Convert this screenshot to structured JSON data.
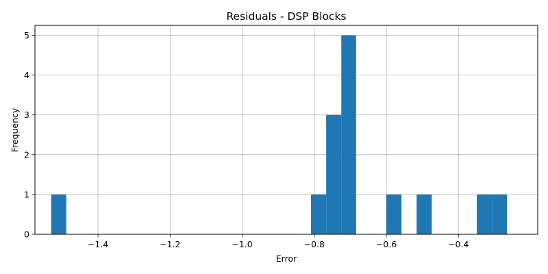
{
  "chart_data": {
    "type": "histogram",
    "title": "Residuals - DSP Blocks",
    "xlabel": "Error",
    "ylabel": "Frequency",
    "xlim": [
      -1.575,
      -0.18
    ],
    "ylim": [
      0,
      5.25
    ],
    "grid": true,
    "bar_color": "#1f77b4",
    "bin_width": 0.0418,
    "bins": [
      {
        "start": -1.53,
        "end": -1.488,
        "count": 1
      },
      {
        "start": -0.809,
        "end": -0.767,
        "count": 1
      },
      {
        "start": -0.767,
        "end": -0.725,
        "count": 3
      },
      {
        "start": -0.725,
        "end": -0.684,
        "count": 5
      },
      {
        "start": -0.6,
        "end": -0.558,
        "count": 1
      },
      {
        "start": -0.516,
        "end": -0.474,
        "count": 1
      },
      {
        "start": -0.349,
        "end": -0.307,
        "count": 1
      },
      {
        "start": -0.307,
        "end": -0.265,
        "count": 1
      }
    ],
    "x_ticks": [
      -1.4,
      -1.2,
      -1.0,
      -0.8,
      -0.6,
      -0.4
    ],
    "x_tick_labels": [
      "−1.4",
      "−1.2",
      "−1.0",
      "−0.8",
      "−0.6",
      "−0.4"
    ],
    "y_ticks": [
      0,
      1,
      2,
      3,
      4,
      5
    ],
    "y_tick_labels": [
      "0",
      "1",
      "2",
      "3",
      "4",
      "5"
    ]
  }
}
